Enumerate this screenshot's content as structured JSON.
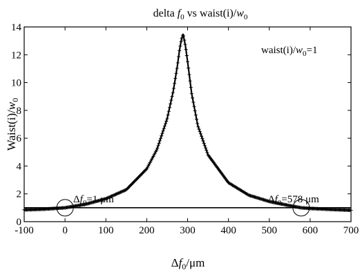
{
  "chart_data": {
    "type": "line",
    "title": [
      "delta ",
      "f",
      "0",
      " vs waist(i)/",
      "w",
      "0"
    ],
    "xlabel": [
      "Δ",
      "f",
      "0",
      "/μm"
    ],
    "ylabel": [
      "Waist(i)/",
      "w",
      "0"
    ],
    "xlim": [
      -100,
      700
    ],
    "ylim": [
      0,
      14
    ],
    "x_ticks": [
      -100,
      0,
      100,
      200,
      300,
      400,
      500,
      600,
      700
    ],
    "y_ticks": [
      0,
      2,
      4,
      6,
      8,
      10,
      12,
      14
    ],
    "grid": false,
    "series": [
      {
        "marker": "+",
        "color": "#000000",
        "x": [
          -100,
          -50,
          0,
          50,
          100,
          150,
          200,
          225,
          250,
          265,
          275,
          280,
          285,
          289,
          295,
          300,
          310,
          325,
          350,
          400,
          450,
          500,
          550,
          578,
          600,
          650,
          700
        ],
        "y": [
          0.85,
          0.9,
          1.0,
          1.25,
          1.65,
          2.3,
          3.8,
          5.2,
          7.4,
          9.4,
          11.2,
          12.3,
          13.1,
          13.5,
          12.6,
          11.5,
          9.2,
          6.9,
          4.8,
          2.8,
          1.9,
          1.45,
          1.15,
          1.0,
          0.95,
          0.88,
          0.82
        ]
      },
      {
        "color": "#000000",
        "x": [
          -100,
          700
        ],
        "y": [
          1,
          1
        ]
      }
    ],
    "annotations": [
      {
        "text": [
          "waist(i)/",
          "w",
          "0",
          "=1"
        ]
      },
      {
        "text": [
          "Δ",
          "f",
          "0",
          "=1 μm"
        ],
        "x": 0,
        "y": 1
      },
      {
        "text": [
          "Δ",
          "f",
          "0",
          "=578 μm"
        ],
        "x": 578,
        "y": 1
      }
    ]
  }
}
